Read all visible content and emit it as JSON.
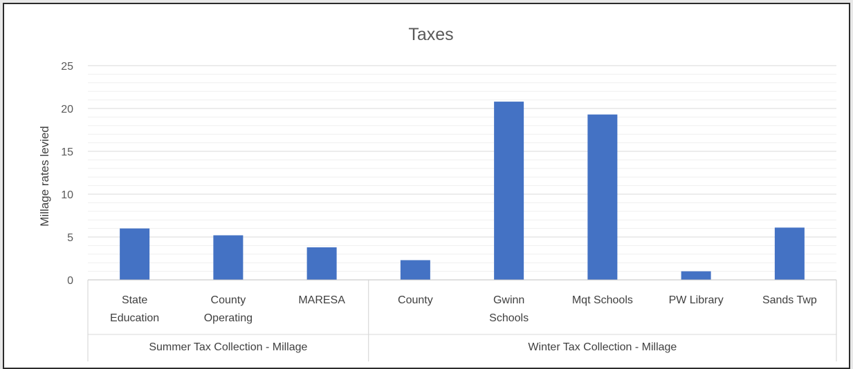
{
  "chart_data": {
    "type": "bar",
    "title": "Taxes",
    "xlabel": "",
    "ylabel": "Millage rates levied",
    "ylim": [
      0,
      25
    ],
    "yticks": [
      0,
      5,
      10,
      15,
      20,
      25
    ],
    "grid": true,
    "legend": "none",
    "bar_color": "#4472c4",
    "groups": [
      {
        "label": "Summer Tax Collection - Millage",
        "categories": [
          "State Education",
          "County Operating",
          "MARESA"
        ],
        "category_lines": [
          [
            "State",
            "Education"
          ],
          [
            "County",
            "Operating"
          ],
          [
            "MARESA"
          ]
        ],
        "values": [
          6.0,
          5.2,
          3.8
        ]
      },
      {
        "label": "Winter Tax Collection - Millage",
        "categories": [
          "County",
          "Gwinn Schools",
          "Mqt Schools",
          "PW Library",
          "Sands Twp"
        ],
        "category_lines": [
          [
            "County"
          ],
          [
            "Gwinn",
            "Schools"
          ],
          [
            "Mqt Schools"
          ],
          [
            "PW Library"
          ],
          [
            "Sands Twp"
          ]
        ],
        "values": [
          2.3,
          20.8,
          19.3,
          1.0,
          6.1
        ]
      }
    ]
  }
}
